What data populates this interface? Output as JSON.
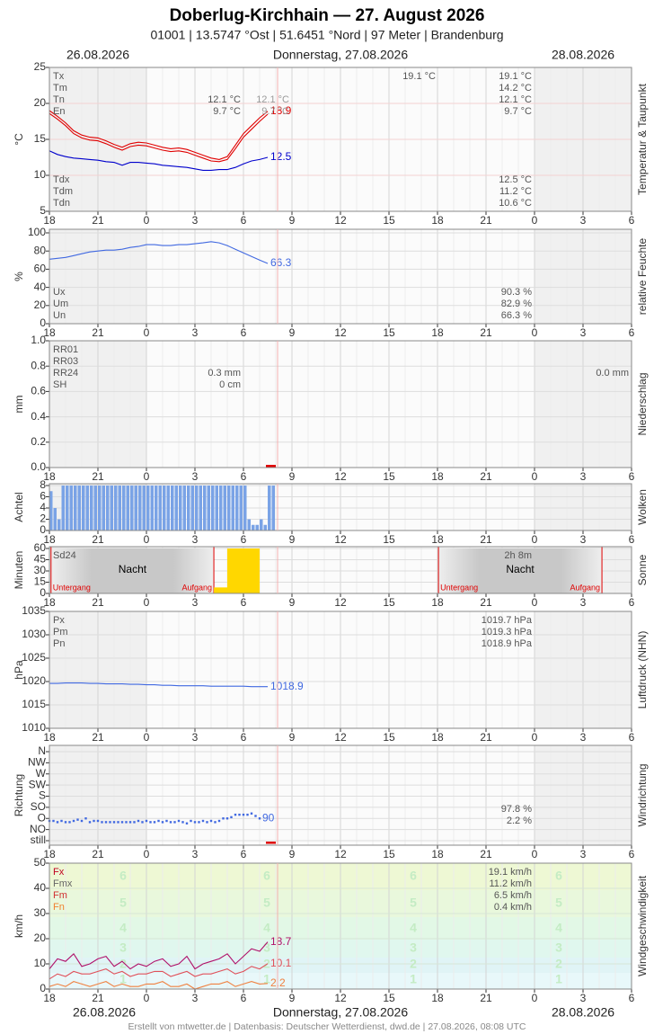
{
  "header": {
    "title": "Doberlug-Kirchhain  —  27. August 2026",
    "subtitle": "01001  |  13.5747 °Ost  |  51.6451 °Nord  |  97 Meter  |  Brandenburg",
    "dates": [
      "26.08.2026",
      "Donnerstag, 27.08.2026",
      "28.08.2026"
    ]
  },
  "footer": {
    "credit": "Erstellt von mtwetter.de | Datenbasis: Deutscher Wetterdienst, dwd.de | 27.08.2026, 08:08 UTC"
  },
  "x_axis": {
    "xlim": [
      0,
      36
    ],
    "xticks": [
      {
        "value": 0,
        "label": "18"
      },
      {
        "value": 3,
        "label": "21"
      },
      {
        "value": 6,
        "label": "0"
      },
      {
        "value": 9,
        "label": "3"
      },
      {
        "value": 12,
        "label": "6"
      },
      {
        "value": 15,
        "label": "9"
      },
      {
        "value": 18,
        "label": "12"
      },
      {
        "value": 21,
        "label": "15"
      },
      {
        "value": 24,
        "label": "18"
      },
      {
        "value": 27,
        "label": "21"
      },
      {
        "value": 30,
        "label": "0"
      },
      {
        "value": 33,
        "label": "3"
      },
      {
        "value": 36,
        "label": "6"
      }
    ]
  },
  "chart_data": [
    {
      "type": "line",
      "title": "Temperatur & Taupunkt",
      "ylabel": "°C",
      "ylim": [
        5,
        25
      ],
      "yticks": [
        5,
        10,
        15,
        20,
        25
      ],
      "grid": true,
      "x": [
        0,
        0.5,
        1,
        1.5,
        2,
        2.5,
        3,
        3.5,
        4,
        4.5,
        5,
        5.5,
        6,
        6.5,
        7,
        7.5,
        8,
        8.5,
        9,
        9.5,
        10,
        10.5,
        11,
        11.5,
        12,
        12.5,
        13,
        13.5
      ],
      "series": [
        {
          "color": "#e00000",
          "label_last": true,
          "values": [
            19.0,
            18.2,
            17.3,
            16.2,
            15.6,
            15.3,
            15.2,
            14.8,
            14.3,
            13.9,
            14.4,
            14.6,
            14.5,
            14.2,
            13.9,
            13.7,
            13.8,
            13.6,
            13.2,
            12.8,
            12.4,
            12.2,
            12.6,
            14.2,
            15.8,
            16.9,
            18.0,
            18.9
          ]
        },
        {
          "color": "#e00000",
          "values": [
            18.6,
            17.8,
            16.9,
            15.8,
            15.2,
            14.9,
            14.8,
            14.4,
            13.9,
            13.5,
            14.0,
            14.2,
            14.1,
            13.8,
            13.5,
            13.3,
            13.4,
            13.2,
            12.8,
            12.4,
            12.0,
            11.9,
            12.2,
            13.7,
            15.3,
            16.4,
            17.5,
            18.5
          ]
        },
        {
          "color": "#0000cc",
          "label_last": true,
          "values": [
            13.4,
            12.9,
            12.6,
            12.4,
            12.3,
            12.2,
            12.1,
            11.9,
            11.8,
            11.4,
            11.8,
            11.8,
            11.7,
            11.6,
            11.4,
            11.3,
            11.2,
            11.1,
            10.9,
            10.7,
            10.7,
            10.8,
            10.8,
            11.1,
            11.6,
            12.0,
            12.2,
            12.5
          ]
        }
      ],
      "upper_stats": [
        {
          "label": "Tx",
          "cols": [
            null,
            null,
            "19.1 °C",
            "19.1 °C"
          ]
        },
        {
          "label": "Tm",
          "cols": [
            null,
            null,
            null,
            "14.2 °C"
          ]
        },
        {
          "label": "Tn",
          "cols": [
            "12.1 °C",
            "12.1 °C",
            null,
            "12.1 °C"
          ]
        },
        {
          "label": "En",
          "cols": [
            "9.7 °C",
            "9.7 °C",
            null,
            "9.7 °C"
          ]
        }
      ],
      "lower_stats": [
        {
          "label": "Tdx",
          "cols": [
            null,
            null,
            null,
            "12.5 °C"
          ]
        },
        {
          "label": "Tdm",
          "cols": [
            null,
            null,
            null,
            "11.2 °C"
          ]
        },
        {
          "label": "Tdn",
          "cols": [
            null,
            null,
            null,
            "10.6 °C"
          ]
        }
      ]
    },
    {
      "type": "line",
      "title": "relative Feuchte",
      "ylabel": "%",
      "ylim": [
        0,
        100
      ],
      "yticks": [
        0,
        20,
        40,
        60,
        80,
        100
      ],
      "grid": true,
      "x": [
        0,
        0.5,
        1,
        1.5,
        2,
        2.5,
        3,
        3.5,
        4,
        4.5,
        5,
        5.5,
        6,
        6.5,
        7,
        7.5,
        8,
        8.5,
        9,
        9.5,
        10,
        10.5,
        11,
        11.5,
        12,
        12.5,
        13,
        13.5
      ],
      "series": [
        {
          "color": "#4169e1",
          "label_last": true,
          "values": [
            71,
            72,
            73,
            75,
            77,
            79,
            80,
            81,
            81,
            82,
            84,
            85,
            87,
            87,
            86,
            86,
            87,
            87,
            88,
            89,
            90.3,
            89,
            86,
            82,
            78,
            74,
            70,
            66.3
          ]
        }
      ],
      "lower_stats": [
        {
          "label": "Ux",
          "cols": [
            null,
            null,
            null,
            "90.3 %"
          ]
        },
        {
          "label": "Um",
          "cols": [
            null,
            null,
            null,
            "82.9 %"
          ]
        },
        {
          "label": "Un",
          "cols": [
            null,
            null,
            null,
            "66.3 %"
          ]
        }
      ]
    },
    {
      "type": "bar",
      "title": "Niederschlag",
      "ylabel": "mm",
      "ylim": [
        0,
        1
      ],
      "yticks": [
        {
          "value": 0,
          "label": "0.0"
        },
        0.2,
        0.4,
        0.6,
        0.8,
        {
          "value": 1,
          "label": "1.0"
        }
      ],
      "grid": true,
      "upper_stats": [
        {
          "label": "RR01",
          "cols": []
        },
        {
          "label": "RR03",
          "cols": []
        },
        {
          "label": "RR24",
          "cols": [
            "0.3 mm",
            null,
            null,
            null,
            "0.0 mm"
          ]
        },
        {
          "label": "SH",
          "cols": [
            "0 cm"
          ]
        }
      ]
    },
    {
      "type": "bar",
      "title": "Wolken",
      "ylabel": "Achtel",
      "ylim": [
        0,
        8
      ],
      "yticks": [
        0,
        2,
        4,
        6,
        8
      ],
      "grid": true,
      "color": "#7aa3e6",
      "x": [
        0,
        0.25,
        0.5,
        0.75,
        1,
        1.25,
        1.5,
        1.75,
        2,
        2.25,
        2.5,
        2.75,
        3,
        3.25,
        3.5,
        3.75,
        4,
        4.25,
        4.5,
        4.75,
        5,
        5.25,
        5.5,
        5.75,
        6,
        6.25,
        6.5,
        6.75,
        7,
        7.25,
        7.5,
        7.75,
        8,
        8.25,
        8.5,
        8.75,
        9,
        9.25,
        9.5,
        9.75,
        10,
        10.25,
        10.5,
        10.75,
        11,
        11.25,
        11.5,
        11.75,
        12,
        12.25,
        12.5,
        12.75,
        13,
        13.25,
        13.5,
        13.75
      ],
      "values": [
        7,
        4,
        2,
        8,
        8,
        8,
        8,
        8,
        8,
        8,
        8,
        8,
        8,
        8,
        8,
        8,
        8,
        8,
        8,
        8,
        8,
        8,
        8,
        8,
        8,
        8,
        8,
        8,
        8,
        8,
        8,
        8,
        8,
        8,
        8,
        8,
        8,
        8,
        8,
        8,
        8,
        8,
        8,
        8,
        8,
        8,
        8,
        8,
        8,
        2,
        1,
        1,
        2,
        1,
        8,
        8
      ]
    },
    {
      "type": "histogram",
      "title": "Sonne",
      "ylabel": "Minuten",
      "ylim": [
        0,
        60
      ],
      "yticks": [
        0,
        15,
        30,
        45,
        60
      ],
      "grid": true,
      "color": "#ffd700",
      "bins": [
        10.17,
        11,
        12,
        13
      ],
      "values": [
        8,
        60,
        60
      ],
      "nights": [
        {
          "label": "Nacht",
          "sunset_label": "Untergang",
          "sunrise_label": "Aufgang",
          "sunset": 0.1,
          "sunrise": 10.17
        },
        {
          "label": "Nacht",
          "sunset_label": "Untergang",
          "sunrise_label": "Aufgang",
          "sunset": 24.06,
          "sunrise": 34.17
        }
      ],
      "upper_stats": [
        {
          "label": "Sd24",
          "cols": [
            null,
            null,
            null,
            "2h 8m"
          ]
        }
      ]
    },
    {
      "type": "line",
      "title": "Luftdruck (NHN)",
      "ylabel": "hPa",
      "ylim": [
        1010,
        1035
      ],
      "yticks": [
        1010,
        1015,
        1020,
        1025,
        1030,
        1035
      ],
      "grid": true,
      "x": [
        0,
        0.5,
        1,
        1.5,
        2,
        2.5,
        3,
        3.5,
        4,
        4.5,
        5,
        5.5,
        6,
        6.5,
        7,
        7.5,
        8,
        8.5,
        9,
        9.5,
        10,
        10.5,
        11,
        11.5,
        12,
        12.5,
        13,
        13.5
      ],
      "series": [
        {
          "color": "#4169e1",
          "label_last": true,
          "values": [
            1019.6,
            1019.6,
            1019.7,
            1019.7,
            1019.7,
            1019.6,
            1019.6,
            1019.5,
            1019.5,
            1019.5,
            1019.4,
            1019.4,
            1019.3,
            1019.3,
            1019.2,
            1019.2,
            1019.1,
            1019.1,
            1019.1,
            1019.1,
            1019.0,
            1019.0,
            1019.0,
            1019.0,
            1019.0,
            1018.9,
            1018.9,
            1018.9
          ]
        }
      ],
      "upper_stats": [
        {
          "label": "Px",
          "cols": [
            null,
            null,
            null,
            "1019.7 hPa"
          ]
        },
        {
          "label": "Pm",
          "cols": [
            null,
            null,
            null,
            "1019.3 hPa"
          ]
        },
        {
          "label": "Pn",
          "cols": [
            null,
            null,
            null,
            "1018.9 hPa"
          ]
        }
      ]
    },
    {
      "type": "scatter",
      "title": "Windrichtung",
      "ylabel": "Richtung",
      "ylim": [
        0,
        360
      ],
      "yticks": [
        {
          "value": 0,
          "label": "still"
        },
        {
          "value": 45,
          "label": "NO"
        },
        {
          "value": 90,
          "label": "O"
        },
        {
          "value": 135,
          "label": "SO"
        },
        {
          "value": 180,
          "label": "S"
        },
        {
          "value": 225,
          "label": "SW"
        },
        {
          "value": 270,
          "label": "W"
        },
        {
          "value": 315,
          "label": "NW"
        },
        {
          "value": 360,
          "label": "N"
        }
      ],
      "grid": true,
      "x": [
        0,
        0.25,
        0.5,
        0.75,
        1,
        1.25,
        1.5,
        1.75,
        2,
        2.25,
        2.5,
        2.75,
        3,
        3.25,
        3.5,
        3.75,
        4,
        4.25,
        4.5,
        4.75,
        5,
        5.25,
        5.5,
        5.75,
        6,
        6.25,
        6.5,
        6.75,
        7,
        7.25,
        7.5,
        7.75,
        8,
        8.25,
        8.5,
        8.75,
        9,
        9.25,
        9.5,
        9.75,
        10,
        10.25,
        10.5,
        10.75,
        11,
        11.25,
        11.5,
        11.75,
        12,
        12.25,
        12.5,
        12.75,
        13
      ],
      "series": [
        {
          "color": "#4169e1",
          "label_last": true,
          "values": [
            80,
            80,
            75,
            80,
            75,
            75,
            80,
            85,
            80,
            90,
            75,
            80,
            80,
            75,
            75,
            75,
            75,
            75,
            75,
            75,
            75,
            75,
            80,
            75,
            80,
            75,
            75,
            80,
            75,
            80,
            75,
            75,
            80,
            75,
            70,
            80,
            75,
            75,
            80,
            75,
            80,
            75,
            80,
            90,
            90,
            95,
            105,
            105,
            105,
            105,
            110,
            100,
            90
          ]
        }
      ],
      "lower_stats": [
        {
          "cols": [
            null,
            null,
            null,
            "97.8 %"
          ]
        },
        {
          "cols": [
            null,
            null,
            null,
            "2.2 %"
          ]
        }
      ]
    },
    {
      "type": "line",
      "title": "Windgeschwindigkeit",
      "ylabel": "km/h",
      "ylim": [
        0,
        50
      ],
      "yticks": [
        0,
        10,
        20,
        30,
        40,
        50
      ],
      "grid": true,
      "beaufort": [
        1,
        2,
        3,
        4,
        5,
        6
      ],
      "x": [
        0,
        0.5,
        1,
        1.5,
        2,
        2.5,
        3,
        3.5,
        4,
        4.5,
        5,
        5.5,
        6,
        6.5,
        7,
        7.5,
        8,
        8.5,
        9,
        9.5,
        10,
        10.5,
        11,
        11.5,
        12,
        12.5,
        13,
        13.5
      ],
      "series": [
        {
          "color": "#b0106a",
          "label_last": true,
          "values": [
            8,
            12,
            11,
            14,
            9,
            10,
            12,
            13,
            9,
            11,
            8,
            10,
            9,
            11,
            12,
            9,
            10,
            13,
            8,
            10,
            11,
            12,
            14,
            10,
            13,
            16,
            15,
            18.7
          ]
        },
        {
          "color": "#e0505a",
          "label_last": true,
          "values": [
            4,
            6,
            5,
            7,
            6,
            6,
            7,
            8,
            6,
            7,
            5,
            6,
            6,
            7,
            7,
            5,
            6,
            7,
            5,
            6,
            6,
            7,
            8,
            6,
            7,
            9,
            8,
            10.1
          ]
        },
        {
          "color": "#f08040",
          "label_last": true,
          "values": [
            1,
            2,
            1,
            3,
            2,
            1,
            2,
            3,
            1,
            2,
            1,
            1,
            2,
            2,
            3,
            1,
            1,
            2,
            0,
            1,
            2,
            2,
            3,
            1,
            2,
            3,
            2,
            2.2
          ]
        }
      ],
      "upper_stats": [
        {
          "label": "Fx",
          "color": "#c00020",
          "cols": [
            null,
            null,
            null,
            "19.1 km/h"
          ]
        },
        {
          "label": "Fmx",
          "color": "#666666",
          "cols": [
            null,
            null,
            null,
            "11.2 km/h"
          ]
        },
        {
          "label": "Fm",
          "color": "#d03030",
          "cols": [
            null,
            null,
            null,
            "6.5 km/h"
          ]
        },
        {
          "label": "Fn",
          "color": "#f08030",
          "cols": [
            null,
            null,
            null,
            "0.4 km/h"
          ]
        }
      ]
    }
  ]
}
